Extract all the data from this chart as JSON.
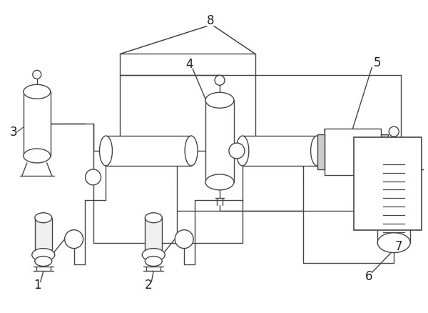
{
  "bg_color": "#ffffff",
  "line_color": "#444444",
  "label_color": "#222222",
  "figsize": [
    6.0,
    4.38
  ],
  "dpi": 100
}
